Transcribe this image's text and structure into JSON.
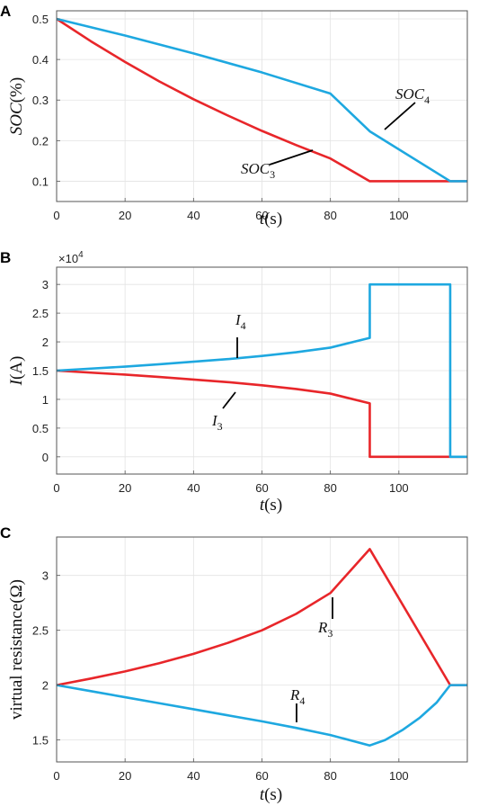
{
  "chart_data": [
    {
      "panel": "A",
      "type": "line",
      "xlabel": {
        "italic": "t",
        "unit": "(s)"
      },
      "ylabel": {
        "italic": "SOC",
        "unit": "(%)"
      },
      "xlim": [
        0,
        120
      ],
      "ylim": [
        0.05,
        0.52
      ],
      "xticks": [
        0,
        20,
        40,
        60,
        80,
        100
      ],
      "yticks": [
        0.1,
        0.2,
        0.3,
        0.4,
        0.5
      ],
      "yticklabels": [
        "0.1",
        "0.2",
        "0.3",
        "0.4",
        "0.5"
      ],
      "grid": true,
      "series": [
        {
          "name": "SOC3",
          "color": "#e8262a",
          "x": [
            0,
            10,
            20,
            30,
            40,
            50,
            60,
            70,
            80,
            91.5,
            100,
            110,
            120
          ],
          "y": [
            0.5,
            0.445,
            0.394,
            0.346,
            0.302,
            0.262,
            0.224,
            0.189,
            0.156,
            0.1,
            0.1,
            0.1,
            0.1
          ]
        },
        {
          "name": "SOC4",
          "color": "#1ea8e0",
          "x": [
            0,
            20,
            40,
            60,
            80,
            91.5,
            115,
            120
          ],
          "y": [
            0.5,
            0.459,
            0.415,
            0.368,
            0.316,
            0.223,
            0.1,
            0.1
          ]
        }
      ],
      "annotations": [
        {
          "base": "SOC",
          "sub": "3",
          "series": "SOC3",
          "x": 80,
          "y": 0.158
        },
        {
          "base": "SOC",
          "sub": "4",
          "series": "SOC4",
          "x": 96,
          "y": 0.21
        }
      ]
    },
    {
      "panel": "B",
      "type": "line",
      "xlabel": {
        "italic": "t",
        "unit": "(s)"
      },
      "ylabel": {
        "italic": "I",
        "unit": "(A)"
      },
      "multiplier": {
        "base": "×10",
        "exp": "4"
      },
      "xlim": [
        0,
        120
      ],
      "ylim": [
        -0.3,
        3.3
      ],
      "xticks": [
        0,
        20,
        40,
        60,
        80,
        100
      ],
      "yticks": [
        0,
        0.5,
        1,
        1.5,
        2,
        2.5,
        3
      ],
      "yticklabels": [
        "0",
        "0.5",
        "1",
        "1.5",
        "2",
        "2.5",
        "3"
      ],
      "grid": true,
      "series": [
        {
          "name": "I3",
          "color": "#e8262a",
          "x": [
            0,
            10,
            20,
            30,
            40,
            50,
            60,
            70,
            80,
            91.5,
            91.5,
            115,
            120
          ],
          "y": [
            1.5,
            1.465,
            1.43,
            1.39,
            1.345,
            1.3,
            1.245,
            1.18,
            1.1,
            0.93,
            0,
            0,
            0
          ]
        },
        {
          "name": "I4",
          "color": "#1ea8e0",
          "x": [
            0,
            10,
            20,
            30,
            40,
            50,
            60,
            70,
            80,
            91.5,
            91.5,
            115,
            115,
            120
          ],
          "y": [
            1.5,
            1.535,
            1.57,
            1.61,
            1.655,
            1.7,
            1.755,
            1.82,
            1.9,
            2.07,
            3,
            3,
            0,
            0
          ]
        }
      ],
      "annotations": [
        {
          "base": "I",
          "sub": "3",
          "series": "I3",
          "x": 52,
          "y": 1.27
        },
        {
          "base": "I",
          "sub": "4",
          "series": "I4",
          "x": 52,
          "y": 1.73
        }
      ]
    },
    {
      "panel": "C",
      "type": "line",
      "xlabel": {
        "italic": "t",
        "unit": "(s)"
      },
      "ylabel": {
        "italic": "",
        "unit": "virtual resistance(Ω)"
      },
      "xlim": [
        0,
        120
      ],
      "ylim": [
        1.3,
        3.35
      ],
      "xticks": [
        0,
        20,
        40,
        60,
        80,
        100
      ],
      "yticks": [
        1.5,
        2,
        2.5,
        3
      ],
      "yticklabels": [
        "1.5",
        "2",
        "2.5",
        "3"
      ],
      "grid": true,
      "series": [
        {
          "name": "R3",
          "color": "#e8262a",
          "x": [
            0,
            10,
            20,
            30,
            40,
            50,
            60,
            70,
            80,
            91.5,
            115,
            120
          ],
          "y": [
            2.0,
            2.06,
            2.125,
            2.2,
            2.285,
            2.385,
            2.5,
            2.65,
            2.84,
            3.24,
            2.0,
            2.0
          ]
        },
        {
          "name": "R4",
          "color": "#1ea8e0",
          "x": [
            0,
            10,
            20,
            30,
            40,
            50,
            60,
            70,
            80,
            91.5,
            96,
            101,
            106,
            111,
            115,
            120
          ],
          "y": [
            2.0,
            1.945,
            1.89,
            1.835,
            1.78,
            1.725,
            1.67,
            1.61,
            1.545,
            1.45,
            1.5,
            1.59,
            1.7,
            1.84,
            2.0,
            2.0
          ]
        }
      ],
      "annotations": [
        {
          "base": "R",
          "sub": "3",
          "series": "R3",
          "x": 81,
          "y": 2.93
        },
        {
          "base": "R",
          "sub": "4",
          "series": "R4",
          "x": 71,
          "y": 1.61
        }
      ]
    }
  ]
}
